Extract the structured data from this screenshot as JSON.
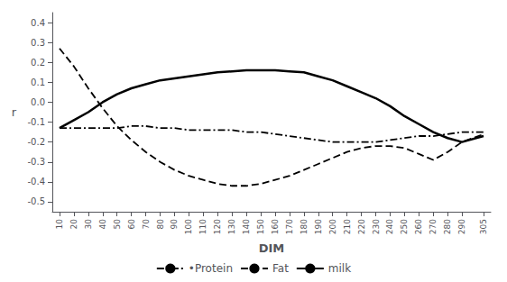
{
  "chart_data": {
    "type": "line",
    "xlabel": "DIM",
    "ylabel": "r",
    "x": [
      10,
      20,
      30,
      40,
      50,
      60,
      70,
      80,
      90,
      100,
      110,
      120,
      130,
      140,
      150,
      160,
      170,
      180,
      190,
      200,
      210,
      220,
      230,
      240,
      250,
      260,
      270,
      280,
      290,
      305
    ],
    "series": [
      {
        "name": "•Protein",
        "color": "#000000",
        "line_style": "dashdot",
        "values": [
          -0.13,
          -0.13,
          -0.13,
          -0.13,
          -0.13,
          -0.12,
          -0.12,
          -0.13,
          -0.13,
          -0.14,
          -0.14,
          -0.14,
          -0.14,
          -0.15,
          -0.15,
          -0.16,
          -0.17,
          -0.18,
          -0.19,
          -0.2,
          -0.2,
          -0.2,
          -0.2,
          -0.19,
          -0.18,
          -0.17,
          -0.17,
          -0.16,
          -0.15,
          -0.15
        ]
      },
      {
        "name": "Fat",
        "color": "#000000",
        "line_style": "dashed",
        "values": [
          0.27,
          0.18,
          0.07,
          -0.03,
          -0.12,
          -0.19,
          -0.25,
          -0.3,
          -0.34,
          -0.37,
          -0.39,
          -0.41,
          -0.42,
          -0.42,
          -0.41,
          -0.39,
          -0.37,
          -0.34,
          -0.31,
          -0.28,
          -0.25,
          -0.23,
          -0.22,
          -0.22,
          -0.23,
          -0.26,
          -0.29,
          -0.25,
          -0.2,
          -0.16
        ]
      },
      {
        "name": "milk",
        "color": "#000000",
        "line_style": "solid",
        "values": [
          -0.13,
          -0.09,
          -0.05,
          0.0,
          0.04,
          0.07,
          0.09,
          0.11,
          0.12,
          0.13,
          0.14,
          0.15,
          0.155,
          0.16,
          0.16,
          0.16,
          0.155,
          0.15,
          0.13,
          0.11,
          0.08,
          0.05,
          0.02,
          -0.02,
          -0.07,
          -0.11,
          -0.15,
          -0.18,
          -0.2,
          -0.17
        ]
      }
    ],
    "xlim": [
      5,
      310
    ],
    "xticks": [
      10,
      20,
      30,
      40,
      50,
      60,
      70,
      80,
      90,
      100,
      110,
      120,
      130,
      140,
      150,
      160,
      170,
      180,
      190,
      200,
      210,
      220,
      230,
      240,
      250,
      260,
      270,
      280,
      290,
      305
    ],
    "ylim": [
      -0.55,
      0.45
    ],
    "yticks": [
      -0.5,
      -0.4,
      -0.3,
      -0.2,
      -0.1,
      {
        "value": 0,
        "label": "0.0"
      },
      0.1,
      0.2,
      0.3,
      0.4
    ],
    "grid": false,
    "legend": "bottom"
  }
}
